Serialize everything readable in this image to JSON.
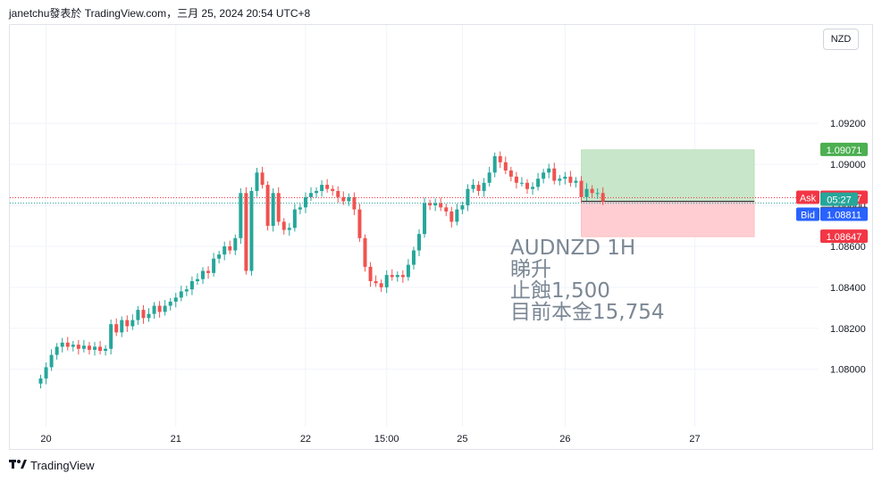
{
  "header": {
    "text": "janetchu發表於 TradingView.com，三月 25, 2024 20:54 UTC+8"
  },
  "currency": "NZD",
  "footer": {
    "brand": "TradingView"
  },
  "annotation": {
    "lines": [
      "AUDNZD 1H",
      "睇升",
      "止蝕1,500",
      "目前本金15,754"
    ]
  },
  "chart_data": {
    "type": "candlestick",
    "symbol": "AUDNZD",
    "timeframe": "1H",
    "ylim": [
      1.0772,
      1.0968
    ],
    "y_ticks": [
      1.08,
      1.082,
      1.084,
      1.086,
      1.088,
      1.09,
      1.092
    ],
    "y_tick_labels": [
      "1.08000",
      "1.08200",
      "1.08400",
      "1.08600",
      "1.08800",
      "1.09000",
      "1.09200"
    ],
    "x_ticks": [
      {
        "label": "20",
        "bar": 1
      },
      {
        "label": "21",
        "bar": 25
      },
      {
        "label": "22",
        "bar": 49
      },
      {
        "label": "15:00",
        "bar": 64
      },
      {
        "label": "25",
        "bar": 78
      },
      {
        "label": "26",
        "bar": 97
      },
      {
        "label": "27",
        "bar": 121
      }
    ],
    "close": [
      1.07955,
      1.0801,
      1.0807,
      1.0811,
      1.0813,
      1.0811,
      1.0812,
      1.081,
      1.08115,
      1.08095,
      1.0811,
      1.0809,
      1.081,
      1.0822,
      1.0818,
      1.0824,
      1.0821,
      1.0824,
      1.0829,
      1.0825,
      1.0827,
      1.0831,
      1.0828,
      1.0831,
      1.0833,
      1.0835,
      1.0838,
      1.0839,
      1.0843,
      1.0844,
      1.0848,
      1.0847,
      1.0854,
      1.0856,
      1.086,
      1.0858,
      1.0864,
      1.0886,
      1.0848,
      1.0887,
      1.0896,
      1.089,
      1.087,
      1.0886,
      1.0872,
      1.0868,
      1.0869,
      1.0878,
      1.0879,
      1.0884,
      1.0886,
      1.0887,
      1.089,
      1.0888,
      1.0887,
      1.0884,
      1.0882,
      1.0884,
      1.0878,
      1.0864,
      1.085,
      1.0843,
      1.0842,
      1.084,
      1.0846,
      1.0845,
      1.0846,
      1.0845,
      1.0851,
      1.0858,
      1.0866,
      1.0881,
      1.088,
      1.0881,
      1.0879,
      1.0877,
      1.0872,
      1.0878,
      1.088,
      1.0888,
      1.089,
      1.0887,
      1.0891,
      1.0896,
      1.0904,
      1.0901,
      1.0897,
      1.0894,
      1.0891,
      1.0891,
      1.0888,
      1.0889,
      1.0893,
      1.0896,
      1.0898,
      1.0892,
      1.0893,
      1.0894,
      1.0891,
      1.0892,
      1.0884,
      1.0888,
      1.0886,
      1.0886,
      1.08819
    ],
    "ask": 1.08837,
    "bid": 1.08811,
    "last": 1.08819,
    "countdown": "05:27",
    "position": {
      "type": "long",
      "entry": 1.08819,
      "take_profit": 1.09071,
      "stop_loss": 1.08647,
      "start_bar": 100,
      "end_bar": 132
    },
    "labels": {
      "ask": "Ask",
      "bid": "Bid",
      "tp": "1.09071",
      "ask_price": "1.08837",
      "last_price": "1.08819",
      "bid_price": "1.08811",
      "sl": "1.08647"
    },
    "colors": {
      "up": "#26a69a",
      "down": "#ef5350",
      "tp_fill": "#c8e6c9",
      "sl_fill": "#ffcdd2",
      "tp_label": "#4caf50",
      "sl_label": "#f23645",
      "ask": "#f23645",
      "bid": "#2962ff",
      "countdown": "#26a69a",
      "last": "#434651"
    }
  }
}
